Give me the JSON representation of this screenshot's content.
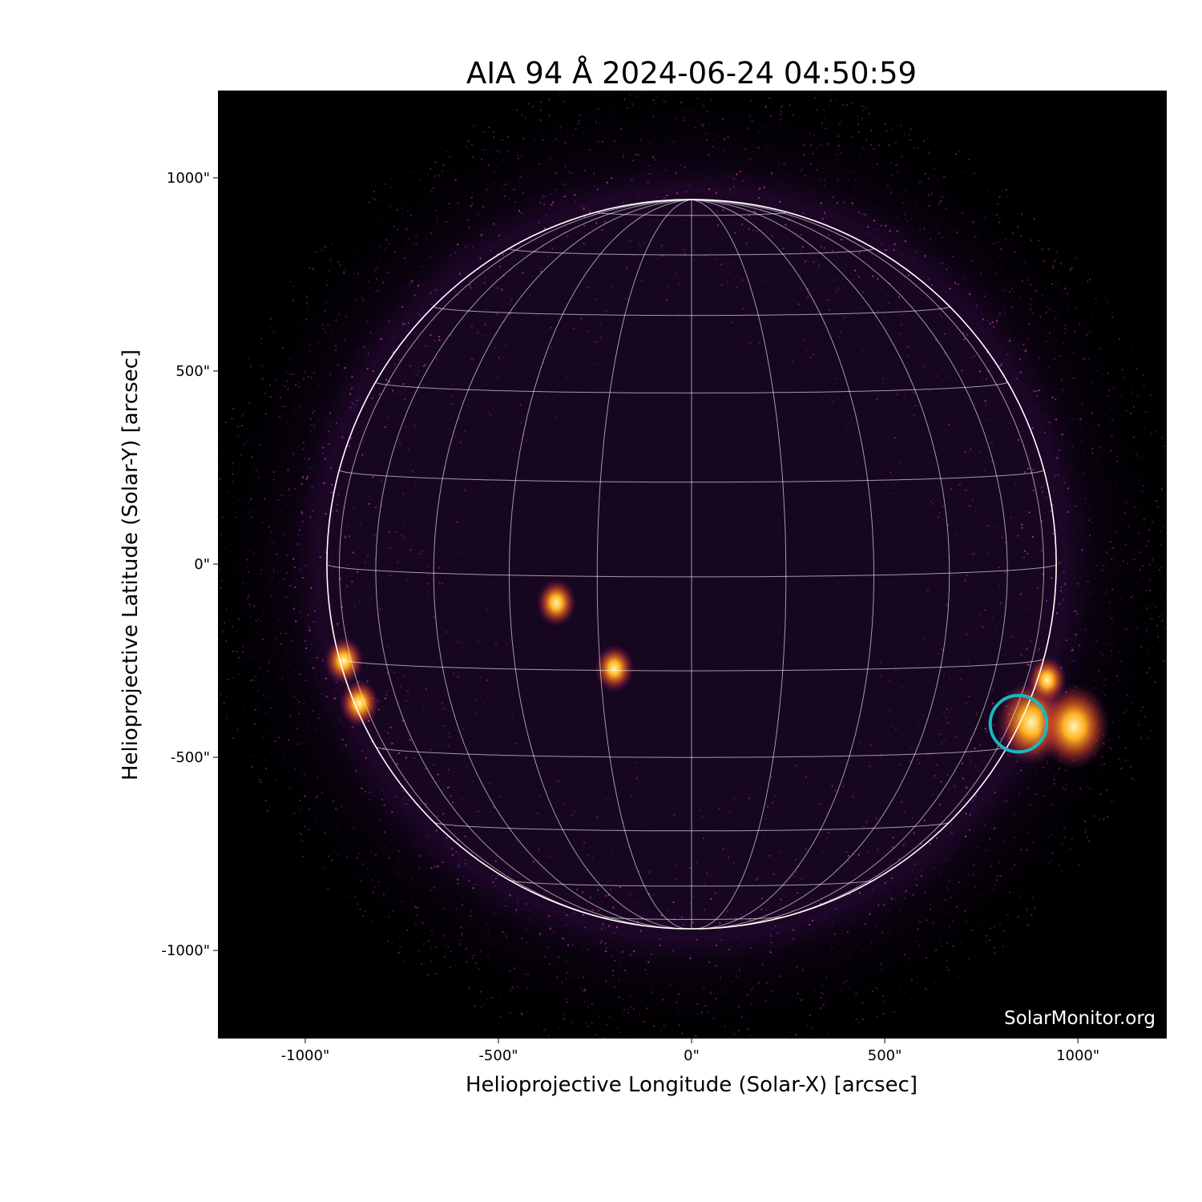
{
  "chart_data": {
    "type": "image",
    "title": "AIA 94 Å 2024-06-24 04:50:59",
    "xlabel": "Helioprojective Longitude (Solar-X) [arcsec]",
    "ylabel": "Helioprojective Latitude (Solar-Y) [arcsec]",
    "xlim": [
      -1226,
      1230
    ],
    "ylim": [
      -1228,
      1226
    ],
    "xticks": [
      {
        "value": -1000,
        "label": "-1000\""
      },
      {
        "value": -500,
        "label": "-500\""
      },
      {
        "value": 0,
        "label": "0\""
      },
      {
        "value": 500,
        "label": "500\""
      },
      {
        "value": 1000,
        "label": "1000\""
      }
    ],
    "yticks": [
      {
        "value": 1000,
        "label": "1000\""
      },
      {
        "value": 500,
        "label": "500\""
      },
      {
        "value": 0,
        "label": "0\""
      },
      {
        "value": -500,
        "label": "-500\""
      },
      {
        "value": -1000,
        "label": "-1000\""
      }
    ],
    "solar_radius_arcsec": 944,
    "heliographic_grid_spacing_deg": 15,
    "colormap": "sdoaia94",
    "highlight_circle": {
      "x": 846,
      "y": -413,
      "radius": 73,
      "color": "#1ab8bf"
    },
    "bright_regions": [
      {
        "x": 880,
        "y": -410
      },
      {
        "x": 990,
        "y": -420
      },
      {
        "x": 920,
        "y": -300
      },
      {
        "x": -860,
        "y": -360
      },
      {
        "x": -900,
        "y": -250
      },
      {
        "x": -350,
        "y": -100
      },
      {
        "x": -200,
        "y": -270
      }
    ],
    "watermark": "SolarMonitor.org"
  }
}
